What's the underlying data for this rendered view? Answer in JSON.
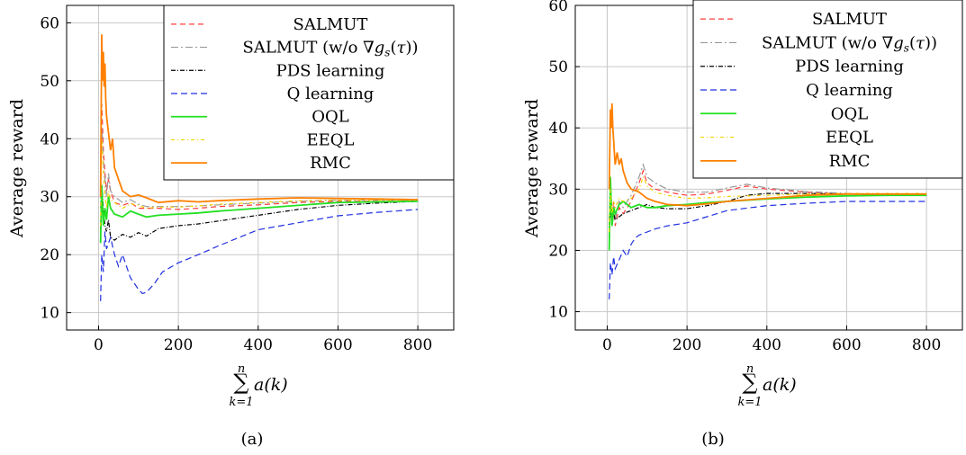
{
  "chart_data": [
    {
      "type": "line",
      "caption": "(a)",
      "xlabel_sum": "∑",
      "xlabel_upper": "n",
      "xlabel_lower": "k=1",
      "xlabel_term": "a(k)",
      "ylabel": "Average reward",
      "xlim": [
        -80,
        890
      ],
      "ylim": [
        7,
        63
      ],
      "xticks": [
        0,
        200,
        400,
        600,
        800
      ],
      "yticks": [
        10,
        20,
        30,
        40,
        50,
        60
      ],
      "grid": true,
      "legend_position": "top-right",
      "series": [
        {
          "name": "SALMUT",
          "color": "#ff3b3b",
          "dash": "6,4",
          "x": [
            5,
            8,
            12,
            16,
            20,
            25,
            30,
            40,
            60,
            80,
            100,
            120,
            150,
            200,
            250,
            300,
            400,
            500,
            600,
            700,
            800
          ],
          "y": [
            30,
            46,
            38,
            34,
            31,
            33,
            31,
            29,
            28.5,
            29,
            28,
            28,
            28,
            27.8,
            28,
            28.3,
            28.6,
            29,
            29.2,
            29.2,
            29.2
          ]
        },
        {
          "name": "SALMUT (w/o ∇g_s(τ))",
          "color": "#999999",
          "dash": "8,3,2,3",
          "x": [
            5,
            8,
            12,
            16,
            20,
            25,
            30,
            40,
            60,
            80,
            100,
            120,
            150,
            200,
            250,
            300,
            400,
            500,
            600,
            700,
            800
          ],
          "y": [
            28,
            42,
            36,
            33,
            30,
            34,
            31,
            30,
            29,
            29.5,
            28.7,
            28.3,
            28.3,
            28.3,
            28.4,
            28.6,
            28.9,
            29.2,
            29.4,
            29.4,
            29.4
          ]
        },
        {
          "name": "PDS learning",
          "color": "#000000",
          "dash": "5,2,1,2",
          "x": [
            5,
            8,
            12,
            16,
            20,
            25,
            30,
            40,
            60,
            80,
            100,
            120,
            150,
            200,
            250,
            300,
            400,
            500,
            600,
            700,
            800
          ],
          "y": [
            24,
            32,
            28,
            25,
            24,
            26,
            23,
            22.5,
            23.5,
            23,
            23.8,
            23.2,
            24.5,
            25,
            25.3,
            25.8,
            26.8,
            27.8,
            28.5,
            28.9,
            29.2
          ]
        },
        {
          "name": "Q learning",
          "color": "#1f2fe0",
          "dash": "7,4",
          "x": [
            5,
            8,
            12,
            16,
            20,
            30,
            40,
            50,
            60,
            70,
            80,
            90,
            100,
            110,
            120,
            140,
            160,
            200,
            250,
            300,
            400,
            500,
            600,
            700,
            800
          ],
          "y": [
            12,
            20,
            17,
            24,
            21,
            23,
            20,
            18,
            20,
            18,
            16,
            15,
            14,
            13.3,
            13.5,
            15,
            17,
            18.6,
            20,
            21.5,
            24.3,
            25.5,
            26.7,
            27.3,
            27.8
          ]
        },
        {
          "name": "OQL",
          "color": "#22e022",
          "dash": "",
          "x": [
            5,
            8,
            12,
            16,
            20,
            25,
            30,
            40,
            60,
            80,
            100,
            120,
            150,
            200,
            250,
            300,
            400,
            500,
            600,
            700,
            800
          ],
          "y": [
            22,
            32,
            25,
            28,
            26,
            30,
            28,
            27,
            26.5,
            27.5,
            27,
            26.5,
            26.8,
            27,
            27.2,
            27.5,
            28,
            28.5,
            29,
            29.1,
            29.2
          ]
        },
        {
          "name": "EEQL",
          "color": "#f2d200",
          "dash": "4,3,1,3",
          "x": [
            5,
            8,
            12,
            16,
            20,
            25,
            30,
            40,
            60,
            80,
            100,
            120,
            150,
            200,
            250,
            300,
            400,
            500,
            600,
            700,
            800
          ],
          "y": [
            25,
            40,
            34,
            30,
            28,
            31,
            29.5,
            29,
            28,
            28.8,
            28.5,
            28,
            28.2,
            28.2,
            28.4,
            28.7,
            29,
            29.3,
            29.4,
            29.4,
            29.4
          ]
        },
        {
          "name": "RMC",
          "color": "#ff8000",
          "dash": "",
          "x": [
            5,
            8,
            10,
            12,
            14,
            16,
            18,
            20,
            25,
            30,
            35,
            40,
            50,
            60,
            80,
            100,
            120,
            150,
            200,
            250,
            300,
            400,
            500,
            600,
            700,
            800
          ],
          "y": [
            30,
            58,
            50,
            55,
            49,
            53,
            47,
            44,
            41,
            38,
            40,
            35,
            33,
            31,
            30,
            30.3,
            29.8,
            29,
            29.3,
            29.1,
            29.3,
            29.6,
            29.8,
            29.7,
            29.6,
            29.5
          ]
        }
      ]
    },
    {
      "type": "line",
      "caption": "(b)",
      "xlabel_sum": "∑",
      "xlabel_upper": "n",
      "xlabel_lower": "k=1",
      "xlabel_term": "a(k)",
      "ylabel": "Average reward",
      "xlim": [
        -80,
        890
      ],
      "ylim": [
        7,
        60
      ],
      "xticks": [
        0,
        200,
        400,
        600,
        800
      ],
      "yticks": [
        10,
        20,
        30,
        40,
        50,
        60
      ],
      "grid": true,
      "legend_position": "top-right",
      "series": [
        {
          "name": "SALMUT",
          "color": "#ff3b3b",
          "dash": "6,4",
          "x": [
            5,
            8,
            12,
            16,
            20,
            30,
            40,
            60,
            80,
            90,
            100,
            120,
            150,
            200,
            250,
            300,
            350,
            400,
            500,
            600,
            700,
            800
          ],
          "y": [
            25,
            30,
            26,
            28,
            24,
            27,
            26,
            28,
            31,
            33,
            31,
            30,
            29.5,
            29,
            29.2,
            29.8,
            30.5,
            30,
            29.5,
            29.2,
            29,
            29
          ]
        },
        {
          "name": "SALMUT (w/o ∇g_s(τ))",
          "color": "#999999",
          "dash": "8,3,2,3",
          "x": [
            5,
            8,
            12,
            16,
            20,
            30,
            40,
            60,
            80,
            90,
            100,
            120,
            150,
            200,
            250,
            300,
            350,
            400,
            500,
            600,
            700,
            800
          ],
          "y": [
            24,
            29,
            27,
            27,
            25,
            28,
            27,
            29,
            32,
            34,
            32,
            31,
            30,
            29.5,
            29.5,
            30.2,
            30.8,
            30.2,
            29.6,
            29.3,
            29.1,
            29
          ]
        },
        {
          "name": "PDS learning",
          "color": "#000000",
          "dash": "5,2,1,2",
          "x": [
            5,
            8,
            12,
            16,
            20,
            30,
            40,
            60,
            80,
            100,
            120,
            150,
            200,
            250,
            300,
            350,
            400,
            500,
            600,
            700,
            800
          ],
          "y": [
            22,
            27,
            24,
            26,
            25,
            25.5,
            26,
            26.5,
            27,
            27.5,
            27,
            26.8,
            26.8,
            27.3,
            28,
            29,
            29.3,
            29.3,
            29.2,
            29.1,
            29
          ]
        },
        {
          "name": "Q learning",
          "color": "#1f2fe0",
          "dash": "7,4",
          "x": [
            5,
            8,
            12,
            16,
            20,
            30,
            40,
            50,
            60,
            70,
            80,
            100,
            120,
            150,
            200,
            250,
            300,
            400,
            500,
            600,
            700,
            800
          ],
          "y": [
            12,
            18,
            16,
            19,
            17,
            18.5,
            20,
            19,
            21,
            22,
            22.5,
            23,
            23.5,
            24,
            24.5,
            25.5,
            26.5,
            27.3,
            27.7,
            28,
            28,
            28
          ]
        },
        {
          "name": "OQL",
          "color": "#22e022",
          "dash": "",
          "x": [
            5,
            8,
            12,
            16,
            20,
            30,
            40,
            60,
            80,
            100,
            120,
            150,
            200,
            250,
            300,
            400,
            500,
            600,
            700,
            800
          ],
          "y": [
            20,
            32,
            24,
            27,
            26,
            27.5,
            28,
            27,
            27.5,
            27,
            27,
            27.3,
            27.5,
            27.8,
            28,
            28.4,
            28.7,
            28.9,
            29,
            29
          ]
        },
        {
          "name": "EEQL",
          "color": "#f2d200",
          "dash": "4,3,1,3",
          "x": [
            5,
            8,
            12,
            16,
            20,
            30,
            40,
            60,
            80,
            90,
            100,
            120,
            150,
            200,
            250,
            300,
            400,
            500,
            600,
            700,
            800
          ],
          "y": [
            23,
            30,
            26,
            28,
            27,
            28.5,
            28,
            28.5,
            30,
            32,
            30.5,
            29.5,
            29,
            28.5,
            28.6,
            28.8,
            29,
            29.2,
            29.3,
            29.3,
            29.3
          ]
        },
        {
          "name": "RMC",
          "color": "#ff8000",
          "dash": "",
          "x": [
            5,
            8,
            10,
            12,
            14,
            16,
            18,
            20,
            25,
            30,
            35,
            40,
            50,
            60,
            80,
            100,
            120,
            150,
            200,
            250,
            300,
            400,
            500,
            600,
            700,
            800
          ],
          "y": [
            30,
            43,
            40,
            44,
            40,
            38,
            36,
            34,
            36,
            34,
            35,
            33,
            31,
            30,
            29.5,
            28.5,
            28,
            27.5,
            27.3,
            27.6,
            28,
            28.5,
            29,
            29.2,
            29.2,
            29.2
          ]
        }
      ]
    }
  ]
}
